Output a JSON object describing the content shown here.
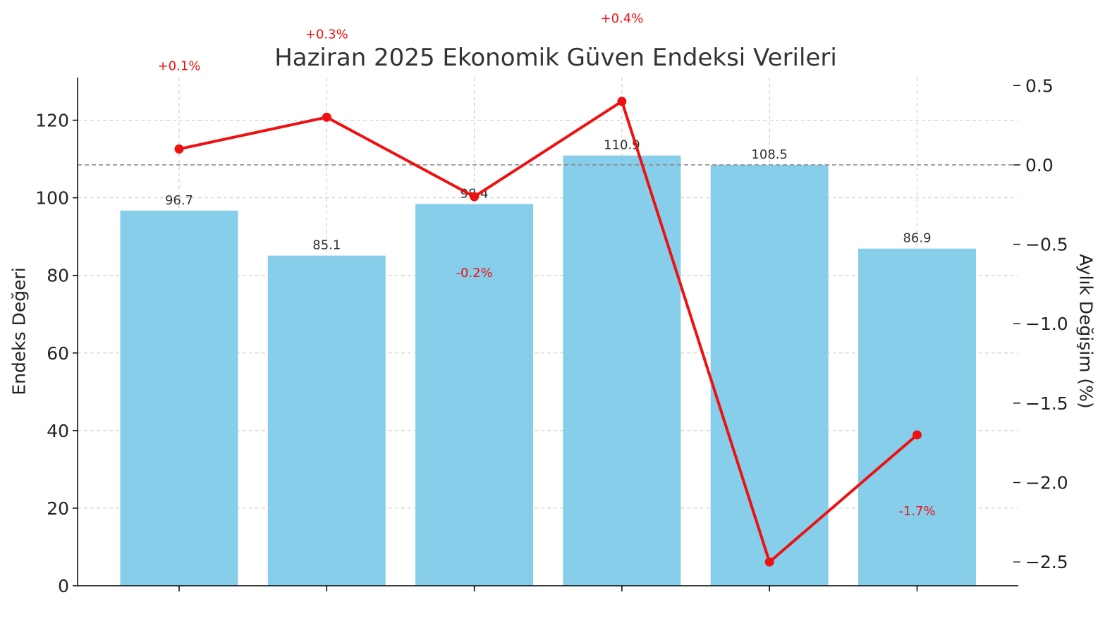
{
  "chart_data": {
    "type": "bar",
    "title": "Haziran 2025 Ekonomik Güven Endeksi Verileri",
    "xlabel": "",
    "ylabel": "Endeks Değeri",
    "y2label": "Aylık Değişim (%)",
    "categories": [
      "",
      "",
      "",
      "",
      "",
      ""
    ],
    "bar_series": {
      "values": [
        96.7,
        85.1,
        98.4,
        110.9,
        108.5,
        86.9
      ],
      "labels": [
        "96.7",
        "85.1",
        "98.4",
        "110.9",
        "108.5",
        "86.9"
      ],
      "color": "#87ceeb"
    },
    "line_series": {
      "values": [
        0.1,
        0.3,
        -0.2,
        0.4,
        -2.5,
        -1.7
      ],
      "labels": [
        "+0.1%",
        "+0.3%",
        "-0.2%",
        "+0.4%",
        "",
        "-1.7%"
      ],
      "color": "#ee1111"
    },
    "ylim": [
      0,
      131
    ],
    "y2lim": [
      -2.65,
      0.55
    ],
    "yticks": [
      0,
      20,
      40,
      60,
      80,
      100,
      120
    ],
    "y2ticks": [
      0.5,
      0.0,
      -0.5,
      -1.0,
      -1.5,
      -2.0,
      -2.5
    ],
    "y2tick_labels": [
      "0.5",
      "0.0",
      "−0.5",
      "−1.0",
      "−1.5",
      "−2.0",
      "−2.5"
    ],
    "reference_line": 0.0,
    "grid": true
  }
}
